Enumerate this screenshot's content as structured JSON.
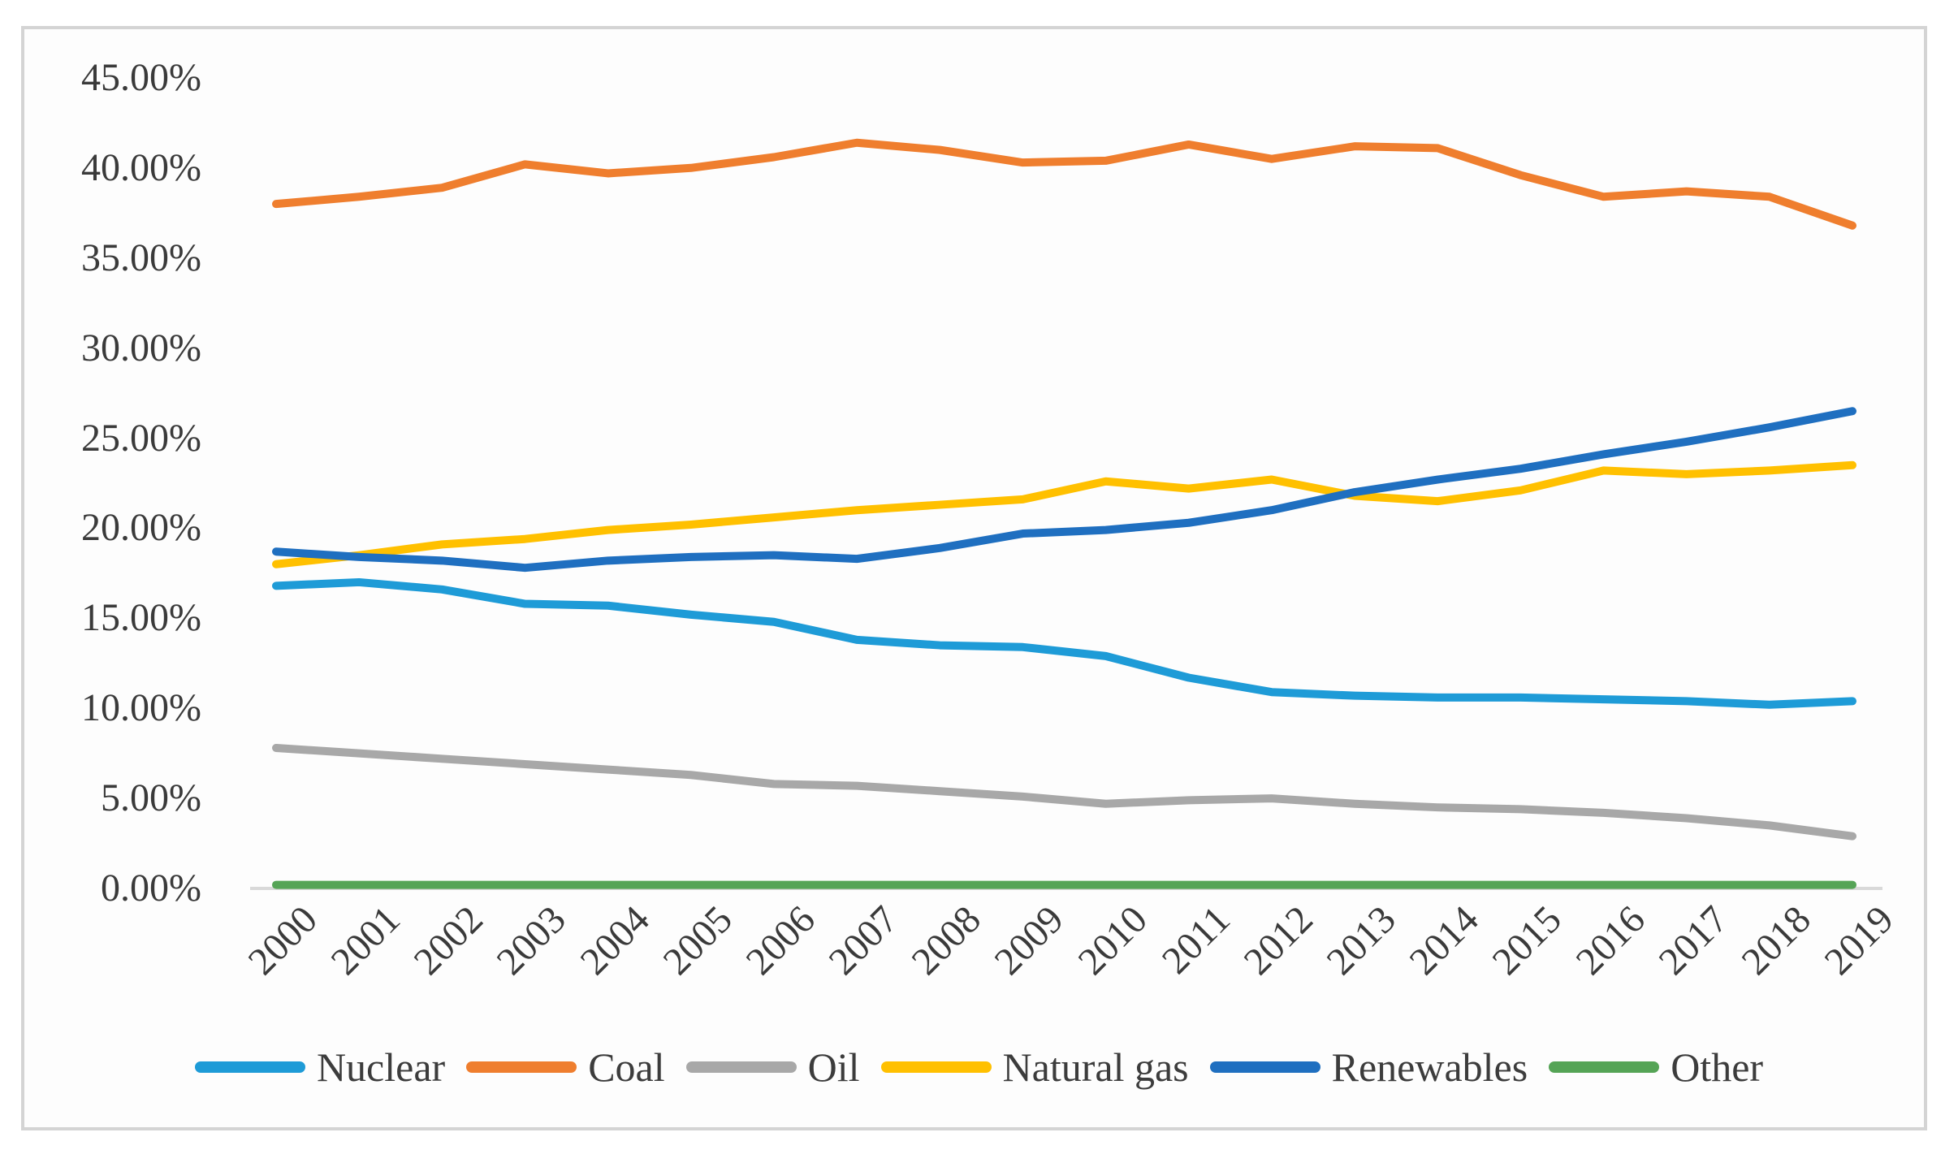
{
  "figure": {
    "background_color": "#fdfdfd",
    "frame_border_color": "#d4d4d4",
    "axis_line_color": "#d9d9d9",
    "text_color": "#3a3a3a"
  },
  "chart_data": {
    "type": "line",
    "title": "",
    "xlabel": "",
    "ylabel": "",
    "grid": false,
    "legend_position": "bottom",
    "ylim": [
      0,
      45
    ],
    "y_tick_labels": [
      "45.00%",
      "40.00%",
      "35.00%",
      "30.00%",
      "25.00%",
      "20.00%",
      "15.00%",
      "10.00%",
      "5.00%",
      "0.00%"
    ],
    "y_tick_values": [
      45,
      40,
      35,
      30,
      25,
      20,
      15,
      10,
      5,
      0
    ],
    "x": [
      "2000",
      "2001",
      "2002",
      "2003",
      "2004",
      "2005",
      "2006",
      "2007",
      "2008",
      "2009",
      "2010",
      "2011",
      "2012",
      "2013",
      "2014",
      "2015",
      "2016",
      "2017",
      "2018",
      "2019"
    ],
    "series": [
      {
        "name": "Nuclear",
        "color": "#1e9bd7",
        "values": [
          16.8,
          17.0,
          16.6,
          15.8,
          15.7,
          15.2,
          14.8,
          13.8,
          13.5,
          13.4,
          12.9,
          11.7,
          10.9,
          10.7,
          10.6,
          10.6,
          10.5,
          10.4,
          10.2,
          10.4
        ]
      },
      {
        "name": "Coal",
        "color": "#ef7e2e",
        "values": [
          38.0,
          38.4,
          38.9,
          40.2,
          39.7,
          40.0,
          40.6,
          41.4,
          41.0,
          40.3,
          40.4,
          41.3,
          40.5,
          41.2,
          41.1,
          39.6,
          38.4,
          38.7,
          38.4,
          36.8
        ]
      },
      {
        "name": "Oil",
        "color": "#a8a8a8",
        "values": [
          7.8,
          7.5,
          7.2,
          6.9,
          6.6,
          6.3,
          5.8,
          5.7,
          5.4,
          5.1,
          4.7,
          4.9,
          5.0,
          4.7,
          4.5,
          4.4,
          4.2,
          3.9,
          3.5,
          2.9
        ]
      },
      {
        "name": "Natural gas",
        "color": "#ffc000",
        "values": [
          18.0,
          18.5,
          19.1,
          19.4,
          19.9,
          20.2,
          20.6,
          21.0,
          21.3,
          21.6,
          22.6,
          22.2,
          22.7,
          21.8,
          21.5,
          22.1,
          23.2,
          23.0,
          23.2,
          23.5
        ]
      },
      {
        "name": "Renewables",
        "color": "#1f6fc0",
        "values": [
          18.7,
          18.4,
          18.2,
          17.8,
          18.2,
          18.4,
          18.5,
          18.3,
          18.9,
          19.7,
          19.9,
          20.3,
          21.0,
          22.0,
          22.7,
          23.3,
          24.1,
          24.8,
          25.6,
          26.5
        ]
      },
      {
        "name": "Other",
        "color": "#55a456",
        "values": [
          0.2,
          0.2,
          0.2,
          0.2,
          0.2,
          0.2,
          0.2,
          0.2,
          0.2,
          0.2,
          0.2,
          0.2,
          0.2,
          0.2,
          0.2,
          0.2,
          0.2,
          0.2,
          0.2,
          0.2
        ]
      }
    ]
  }
}
